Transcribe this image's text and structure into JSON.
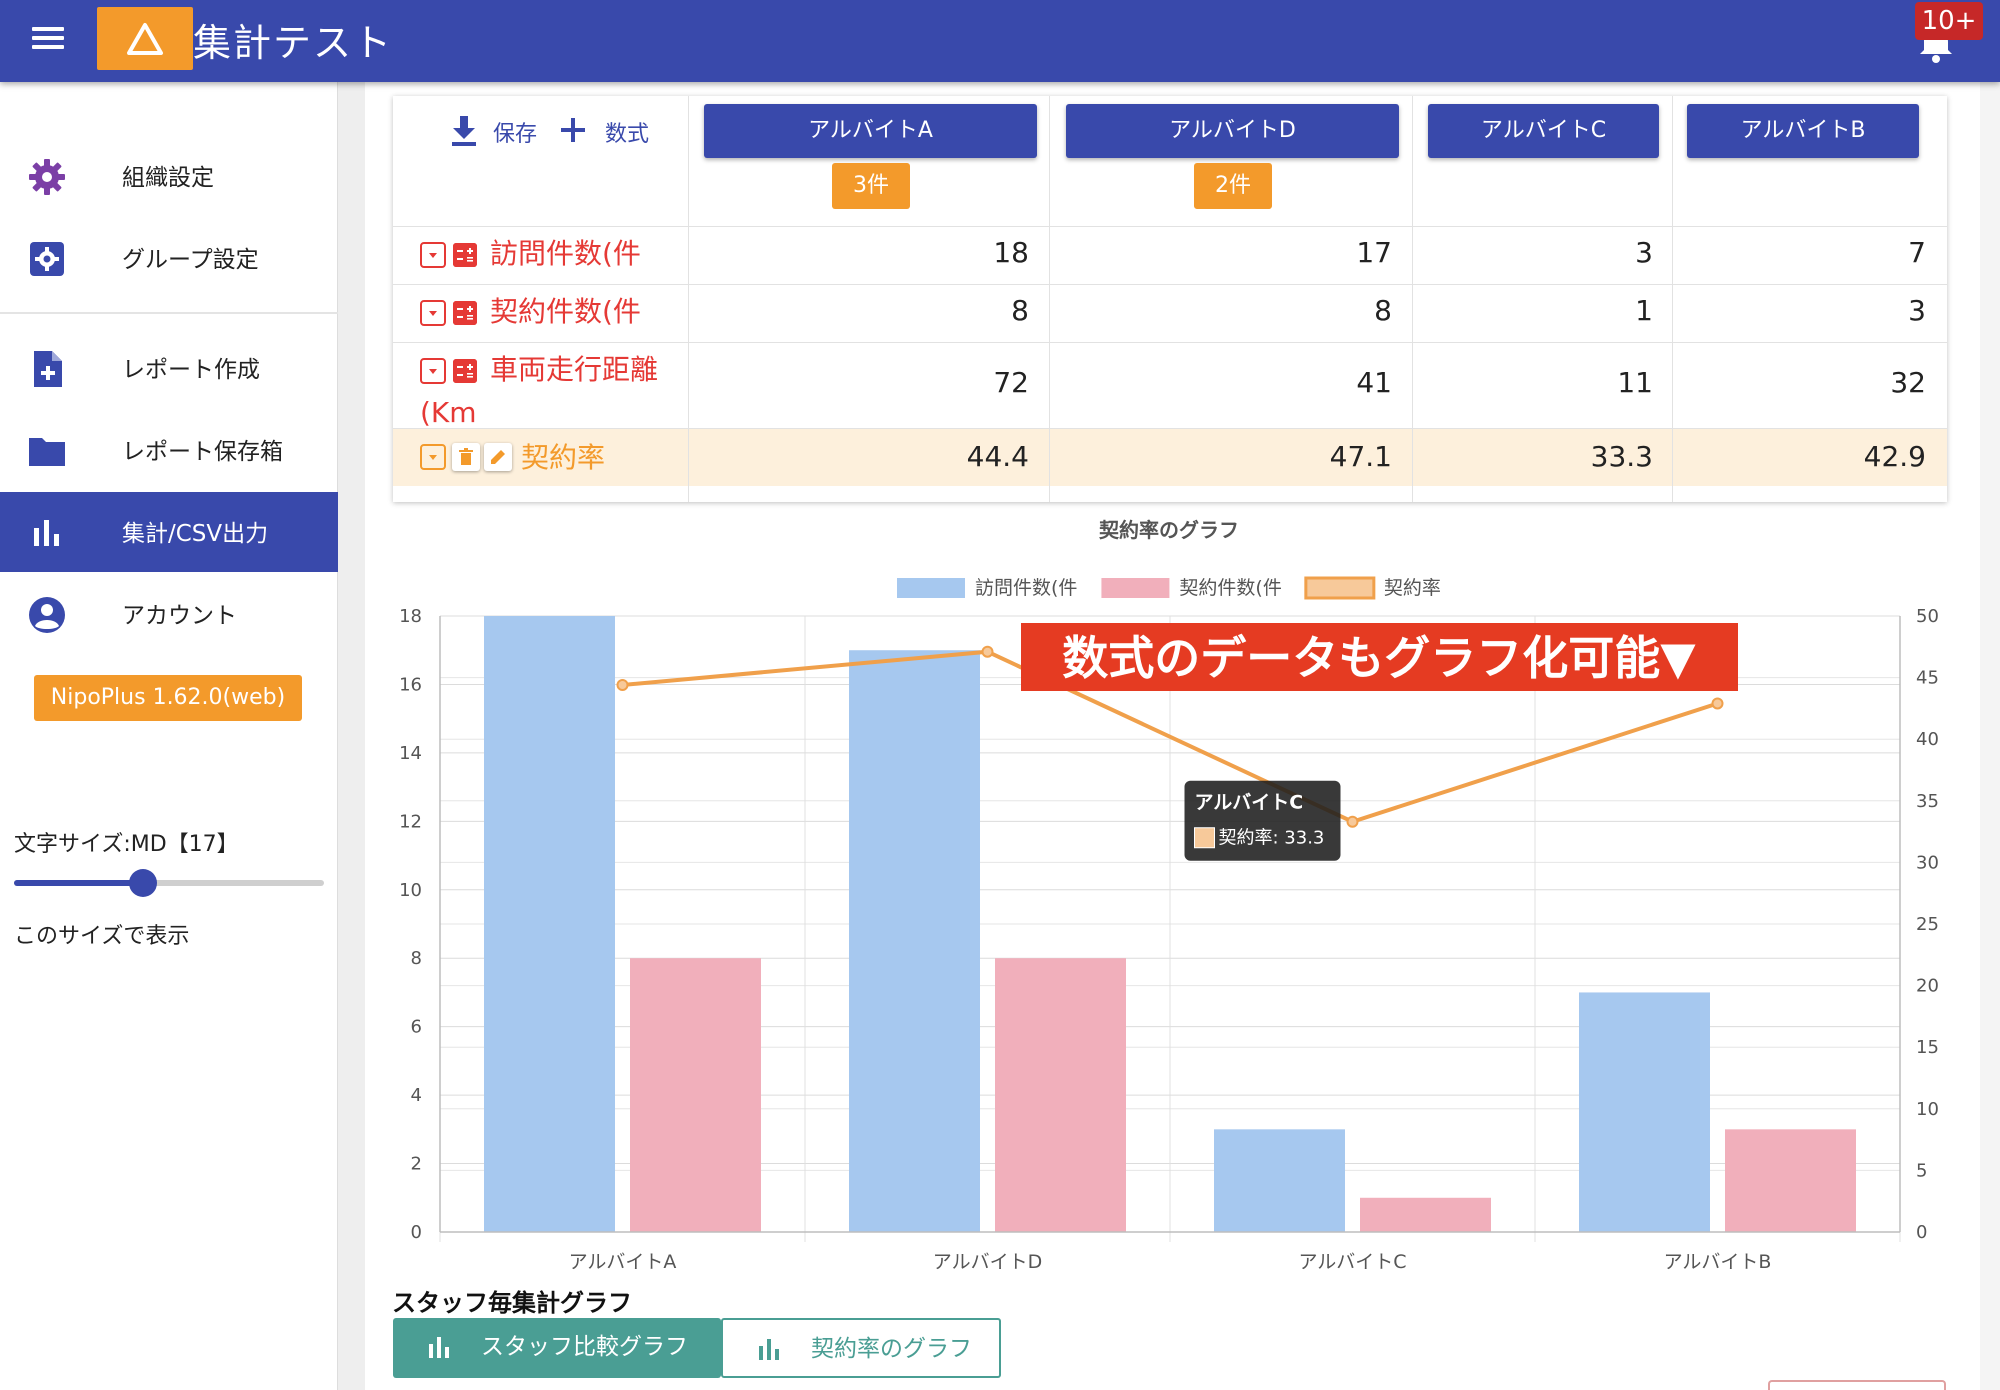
{
  "header": {
    "title": "集計テスト",
    "notification_count": "10+"
  },
  "sidebar": {
    "items": [
      {
        "label": "組織設定",
        "icon": "gear-icon"
      },
      {
        "label": "グループ設定",
        "icon": "group-settings-icon"
      },
      {
        "label": "レポート作成",
        "icon": "add-document-icon"
      },
      {
        "label": "レポート保存箱",
        "icon": "folder-icon"
      },
      {
        "label": "集計/CSV出力",
        "icon": "bar-chart-icon",
        "active": true
      },
      {
        "label": "アカウント",
        "icon": "account-icon"
      }
    ],
    "version": "NipoPlus 1.62.0(web)",
    "font_size_label": "文字サイズ:MD【17】",
    "font_size_level": 17,
    "font_size_apply": "このサイズで表示"
  },
  "table": {
    "save_label": "保存",
    "formula_label": "数式",
    "staff": [
      {
        "name": "アルバイトA",
        "count": "3件"
      },
      {
        "name": "アルバイトD",
        "count": "2件"
      },
      {
        "name": "アルバイトC",
        "count": ""
      },
      {
        "name": "アルバイトB",
        "count": ""
      }
    ],
    "rows": [
      {
        "label": "訪問件数(件",
        "values": [
          "18",
          "17",
          "3",
          "7"
        ]
      },
      {
        "label": "契約件数(件",
        "values": [
          "8",
          "8",
          "1",
          "3"
        ]
      },
      {
        "label": "車両走行距離(Km",
        "label_line1": "車両走行距離",
        "label_line2": "(Km",
        "values": [
          "72",
          "41",
          "11",
          "32"
        ]
      },
      {
        "label": "契約率",
        "values": [
          "44.4",
          "47.1",
          "33.3",
          "42.9"
        ]
      }
    ]
  },
  "chart_data": {
    "type": "bar",
    "title": "契約率のグラフ",
    "categories": [
      "アルバイトA",
      "アルバイトD",
      "アルバイトC",
      "アルバイトB"
    ],
    "series": [
      {
        "name": "訪問件数(件",
        "type": "bar",
        "axis": "left",
        "color": "#a6c8ef",
        "values": [
          18,
          17,
          3,
          7
        ]
      },
      {
        "name": "契約件数(件",
        "type": "bar",
        "axis": "left",
        "color": "#f1afbb",
        "values": [
          8,
          8,
          1,
          3
        ]
      },
      {
        "name": "契約率",
        "type": "line",
        "axis": "right",
        "color": "#f0a04b",
        "values": [
          44.4,
          47.1,
          33.3,
          42.9
        ]
      }
    ],
    "ylim_left": [
      0,
      18
    ],
    "yticks_left": [
      "0",
      "2",
      "4",
      "6",
      "8",
      "10",
      "12",
      "14",
      "16",
      "18"
    ],
    "ylim_right": [
      0,
      50
    ],
    "yticks_right": [
      "0",
      "5",
      "10",
      "15",
      "20",
      "25",
      "30",
      "35",
      "40",
      "45",
      "50"
    ],
    "legend": "top",
    "grid": true,
    "tooltip": {
      "title": "アルバイトC",
      "body": "契約率: 33.3"
    },
    "annotation": "数式のデータもグラフ化可能▼"
  },
  "bottom": {
    "section_title": "スタッフ毎集計グラフ",
    "tabs": [
      "スタッフ比較グラフ",
      "契約率のグラフ"
    ]
  },
  "colors": {
    "primary": "#3949ab",
    "accent": "#f39a2b",
    "formula_red": "#e53935",
    "teal": "#4a9e94",
    "annotation_bg": "#e53b22"
  }
}
